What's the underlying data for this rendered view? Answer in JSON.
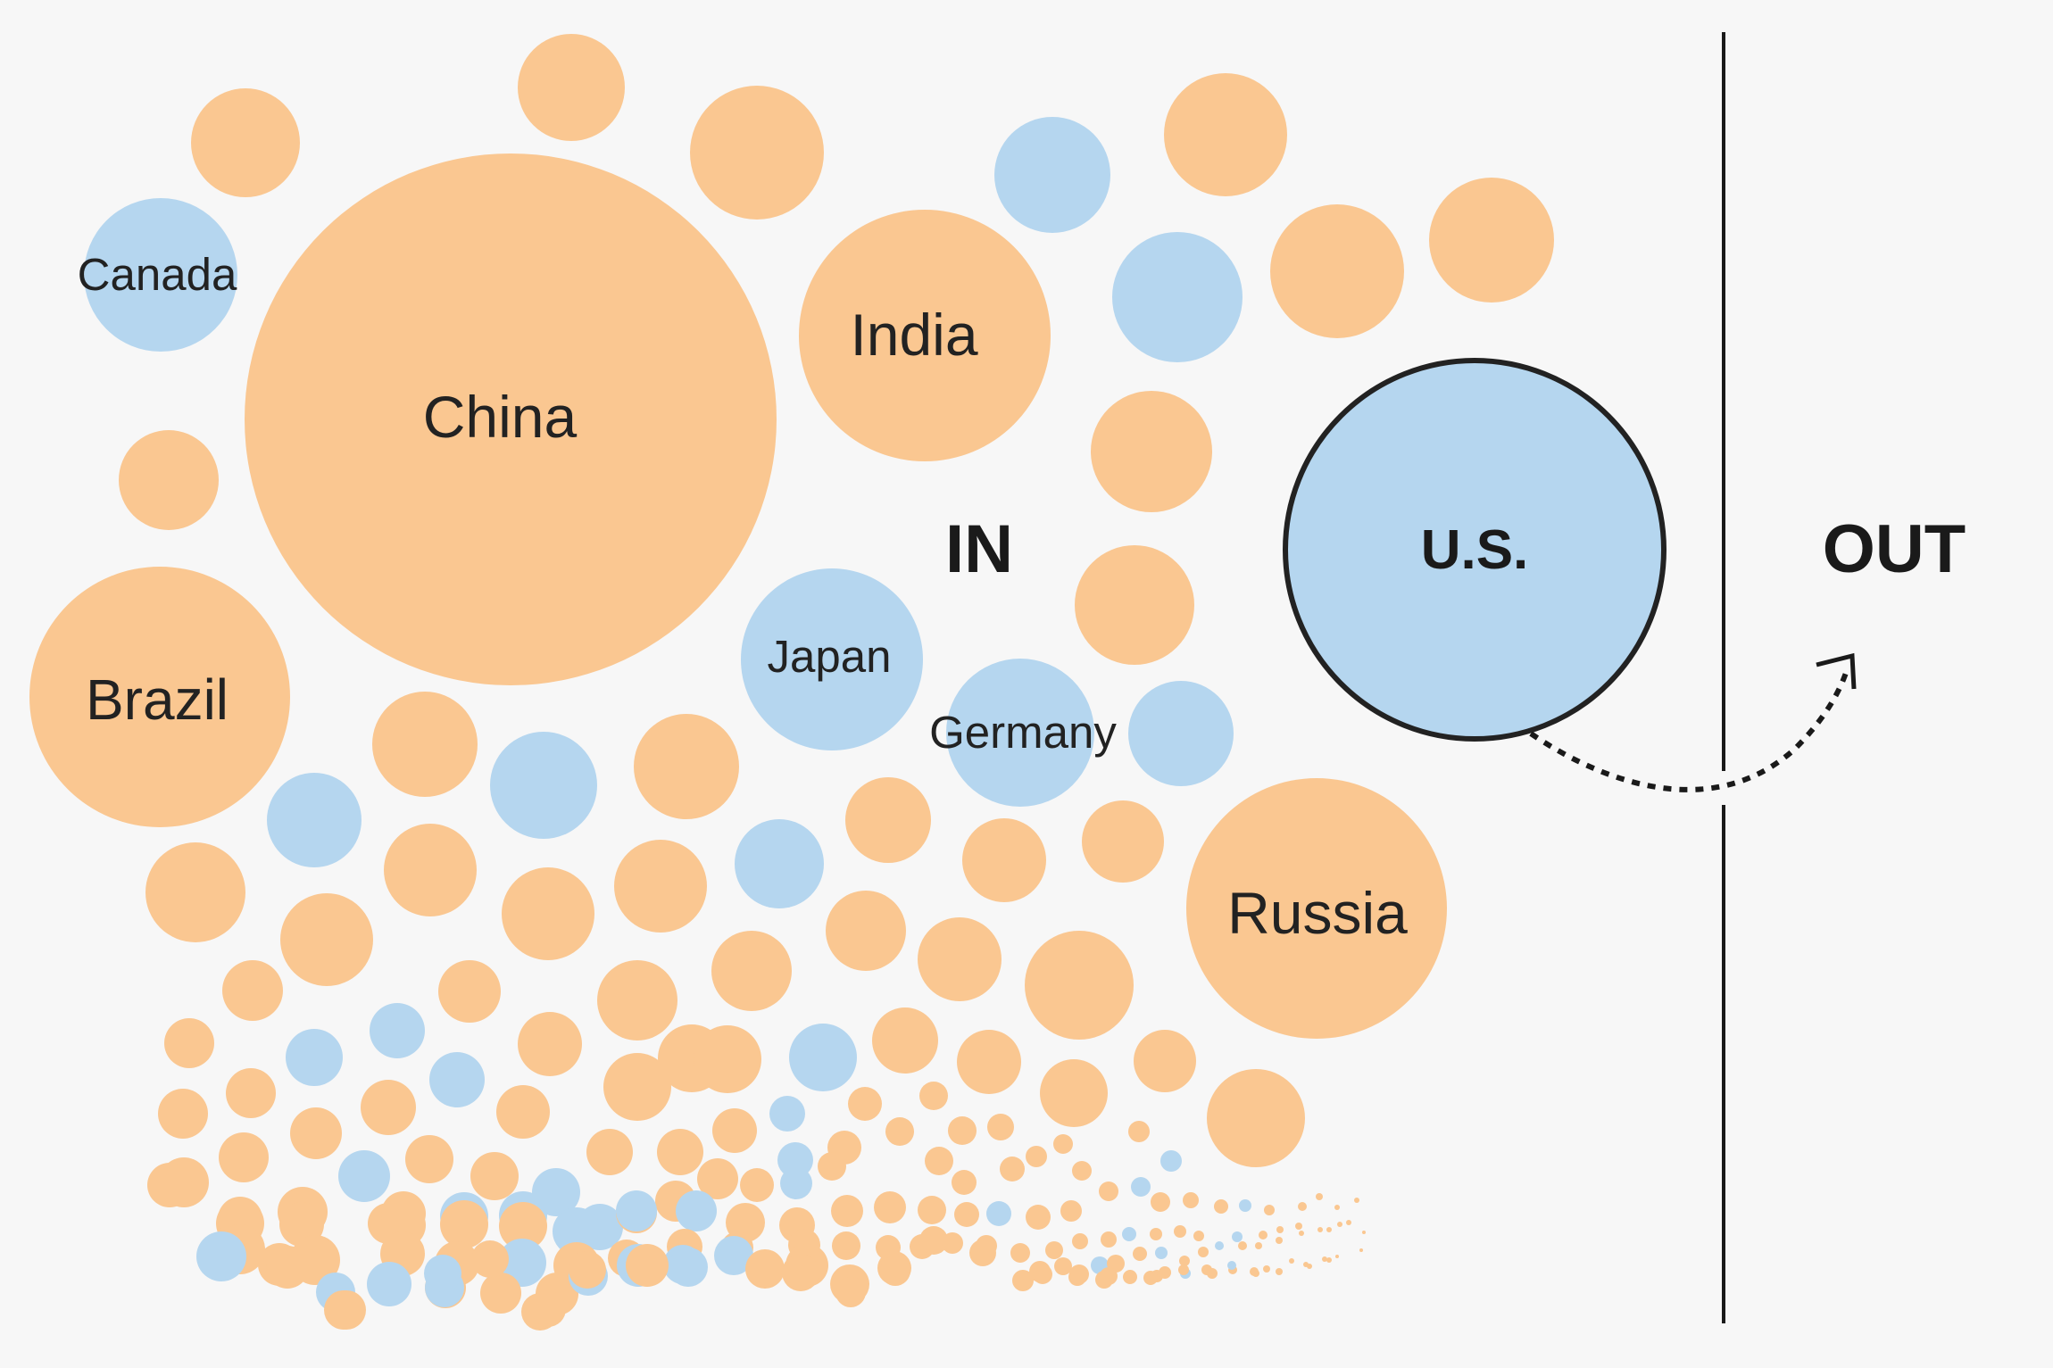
{
  "palette": {
    "orange": "#fac791",
    "blue": "#b5d6ef",
    "ink": "#222222",
    "background": "#f7f7f7"
  },
  "regions": {
    "in": "IN",
    "out": "OUT"
  },
  "labels": {
    "canada": "Canada",
    "china": "China",
    "india": "India",
    "brazil": "Brazil",
    "japan": "Japan",
    "germany": "Germany",
    "russia": "Russia",
    "us": "U.S."
  },
  "highlight": {
    "country_key": "us",
    "color": "blue"
  },
  "icons": {
    "exit_arrow": "dotted-curved-arrow-icon"
  },
  "circle_colors": [
    "orange",
    "blue"
  ]
}
